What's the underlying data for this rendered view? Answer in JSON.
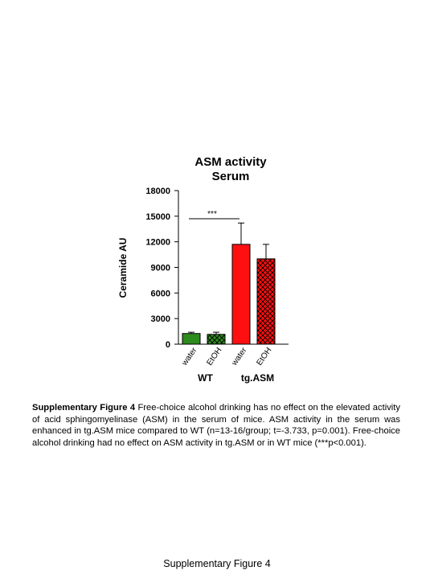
{
  "chart_data": {
    "type": "bar",
    "title": "ASM activity",
    "subtitle": "Serum",
    "ylabel": "Ceramide AU",
    "ylim": [
      0,
      18000
    ],
    "yticks": [
      0,
      3000,
      6000,
      9000,
      12000,
      15000,
      18000
    ],
    "categories": [
      "water",
      "EtOH",
      "water",
      "EtOH"
    ],
    "groups": [
      "WT",
      "tg.ASM"
    ],
    "values": [
      1250,
      1150,
      11700,
      10000
    ],
    "errors": [
      150,
      250,
      2500,
      1700
    ],
    "bar_colors": [
      "#2e8b1e",
      "#2e8b1e",
      "#ff1010",
      "#ff1010"
    ],
    "bar_patterns": [
      "solid",
      "crosshatch",
      "solid",
      "crosshatch"
    ],
    "annotation": {
      "text": "***",
      "y": 14700
    }
  },
  "caption": {
    "label": "Supplementary Figure 4",
    "text": " Free-choice alcohol drinking has no effect on the elevated activity of acid sphingomyelinase (ASM) in the serum of mice. ASM activity in the serum was enhanced in tg.ASM mice compared to WT (n=13-16/group; t=-3.733, p=0.001). Free-choice alcohol drinking had no effect on ASM activity in tg.ASM or in WT mice (***p<0.001)."
  },
  "footer": "Supplementary Figure 4"
}
